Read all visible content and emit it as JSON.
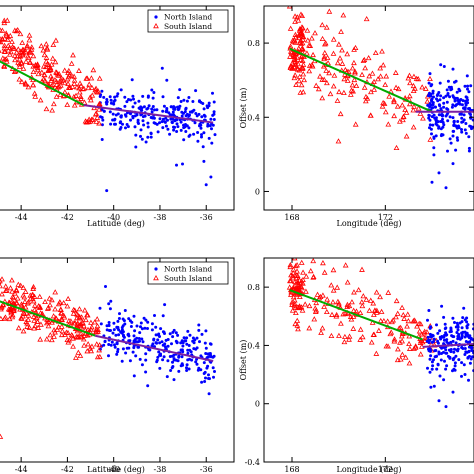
{
  "colors": {
    "north": "#0000ff",
    "south": "#ff0000",
    "fit_south": "#00aa00",
    "fit_north": "#7b1fa2"
  },
  "chart_data": [
    {
      "type": "scatter",
      "title": "",
      "xlabel": "Latitude (deg)",
      "ylabel": "",
      "xlim": [
        -45,
        -34.8
      ],
      "ylim": [
        -0.05,
        1.0
      ],
      "xticks": [
        "-44",
        "-42",
        "-40",
        "-38",
        "-36"
      ],
      "xtick_values": [
        -44,
        -42,
        -40,
        -38,
        -36
      ],
      "yticks": [],
      "ytick_values": [],
      "legend": {
        "position": "top-right",
        "entries": [
          "North Island",
          "South Island"
        ]
      },
      "series": [
        {
          "key": "north",
          "marker": "dot",
          "x_range": [
            -40.6,
            -35.6
          ],
          "trend": [
            [
              -40.6,
              0.48
            ],
            [
              -35.7,
              0.41
            ]
          ],
          "spread": 0.06,
          "count": 280,
          "outliers": [
            [
              -36.1,
              0.2
            ],
            [
              -35.8,
              0.12
            ],
            [
              -36.0,
              0.08
            ],
            [
              -40.3,
              0.05
            ],
            [
              -38.6,
              0.3
            ],
            [
              -39.2,
              0.62
            ],
            [
              -37.9,
              0.68
            ]
          ]
        },
        {
          "key": "south",
          "marker": "triangle",
          "x_range": [
            -45,
            -40.6
          ],
          "trend": [
            [
              -45,
              0.82
            ],
            [
              -40.6,
              0.48
            ]
          ],
          "spread": 0.07,
          "count": 240,
          "outliers": []
        }
      ],
      "fits": [
        {
          "key": "fit_south",
          "points": [
            [
              -45,
              0.72
            ],
            [
              -41.3,
              0.49
            ]
          ]
        },
        {
          "key": "fit_north",
          "points": [
            [
              -41.3,
              0.49
            ],
            [
              -35.7,
              0.4
            ]
          ]
        }
      ]
    },
    {
      "type": "scatter",
      "title": "",
      "xlabel": "Longitude (deg)",
      "ylabel": "Offset (m)",
      "xlim": [
        166.8,
        175.8
      ],
      "ylim": [
        -0.1,
        1.0
      ],
      "xticks": [
        "168",
        "172"
      ],
      "xtick_values": [
        168,
        172
      ],
      "yticks": [
        "0",
        "0.4",
        "0.8"
      ],
      "ytick_values": [
        0,
        0.4,
        0.8
      ],
      "legend": null,
      "series": [
        {
          "key": "south",
          "marker": "triangle",
          "x_range": [
            167.9,
            174.0
          ],
          "trend": [
            [
              167.9,
              0.78
            ],
            [
              174.0,
              0.42
            ]
          ],
          "spread": 0.1,
          "count": 240,
          "outliers": [
            [
              170.2,
              0.95
            ],
            [
              169.6,
              0.97
            ],
            [
              171.2,
              0.93
            ]
          ]
        },
        {
          "key": "north",
          "marker": "dot",
          "x_range": [
            173.8,
            175.8
          ],
          "trend": [
            [
              173.8,
              0.44
            ],
            [
              175.8,
              0.42
            ]
          ],
          "spread": 0.08,
          "count": 200,
          "outliers": [
            [
              174.0,
              0.05
            ],
            [
              174.3,
              0.1
            ],
            [
              174.6,
              0.02
            ],
            [
              174.9,
              0.15
            ]
          ]
        }
      ],
      "fits": [
        {
          "key": "fit_south",
          "points": [
            [
              167.9,
              0.77
            ],
            [
              174.0,
              0.43
            ]
          ]
        },
        {
          "key": "fit_north",
          "points": [
            [
              173.3,
              0.43
            ],
            [
              175.8,
              0.43
            ]
          ]
        }
      ]
    },
    {
      "type": "scatter",
      "title": "",
      "xlabel": "Latitude (deg)",
      "ylabel": "",
      "xlim": [
        -45,
        -34.8
      ],
      "ylim": [
        -0.05,
        1.0
      ],
      "xticks": [
        "-44",
        "-42",
        "-40",
        "-38",
        "-36"
      ],
      "xtick_values": [
        -44,
        -42,
        -40,
        -38,
        -36
      ],
      "yticks": [],
      "ytick_values": [],
      "legend": {
        "position": "top-right",
        "entries": [
          "North Island",
          "South Island"
        ]
      },
      "series": [
        {
          "key": "north",
          "marker": "dot",
          "x_range": [
            -40.6,
            -35.6
          ],
          "trend": [
            [
              -40.6,
              0.62
            ],
            [
              -35.7,
              0.48
            ]
          ],
          "spread": 0.07,
          "count": 280,
          "outliers": [
            [
              -35.9,
              0.38
            ],
            [
              -36.2,
              0.36
            ],
            [
              -37.8,
              0.76
            ],
            [
              -39.5,
              0.73
            ]
          ]
        },
        {
          "key": "south",
          "marker": "triangle",
          "x_range": [
            -45,
            -40.6
          ],
          "trend": [
            [
              -45,
              0.8
            ],
            [
              -40.6,
              0.6
            ]
          ],
          "spread": 0.06,
          "count": 240,
          "outliers": [
            [
              -44.9,
              0.08
            ]
          ]
        }
      ],
      "fits": [
        {
          "key": "fit_south",
          "points": [
            [
              -45,
              0.78
            ],
            [
              -40.8,
              0.6
            ]
          ]
        },
        {
          "key": "fit_north",
          "points": [
            [
              -40.8,
              0.6
            ],
            [
              -35.7,
              0.47
            ]
          ]
        }
      ]
    },
    {
      "type": "scatter",
      "title": "",
      "xlabel": "Longitude (deg)",
      "ylabel": "Offset (m)",
      "xlim": [
        166.8,
        175.8
      ],
      "ylim": [
        -0.4,
        1.0
      ],
      "xticks": [
        "168",
        "172"
      ],
      "xtick_values": [
        168,
        172
      ],
      "yticks": [
        "-0.4",
        "0",
        "0.4",
        "0.8"
      ],
      "ytick_values": [
        -0.4,
        0,
        0.4,
        0.8
      ],
      "legend": null,
      "series": [
        {
          "key": "south",
          "marker": "triangle",
          "x_range": [
            167.9,
            174.2
          ],
          "trend": [
            [
              167.9,
              0.8
            ],
            [
              174.2,
              0.42
            ]
          ],
          "spread": 0.1,
          "count": 240,
          "outliers": [
            [
              171.0,
              0.92
            ],
            [
              170.3,
              0.95
            ],
            [
              169.4,
              0.9
            ]
          ]
        },
        {
          "key": "north",
          "marker": "dot",
          "x_range": [
            173.8,
            175.8
          ],
          "trend": [
            [
              173.8,
              0.4
            ],
            [
              175.8,
              0.42
            ]
          ],
          "spread": 0.1,
          "count": 200,
          "outliers": [
            [
              174.3,
              0.02
            ],
            [
              174.6,
              -0.02
            ],
            [
              174.9,
              0.08
            ],
            [
              174.1,
              0.12
            ]
          ]
        }
      ],
      "fits": [
        {
          "key": "fit_south",
          "points": [
            [
              167.9,
              0.78
            ],
            [
              173.6,
              0.44
            ]
          ]
        },
        {
          "key": "fit_north",
          "points": [
            [
              173.6,
              0.39
            ],
            [
              175.8,
              0.41
            ]
          ]
        }
      ]
    }
  ]
}
